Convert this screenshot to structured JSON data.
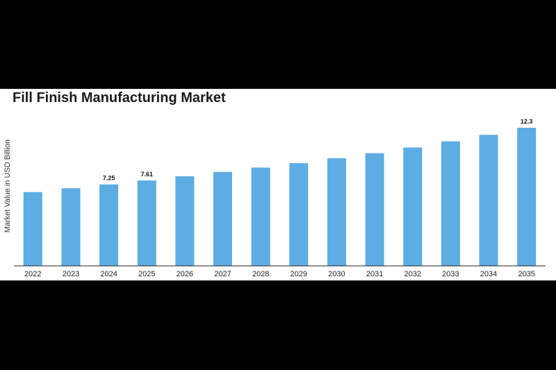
{
  "chart_data": {
    "type": "bar",
    "title": "Fill Finish Manufacturing Market",
    "xlabel": "",
    "ylabel": "Market Value in USD Billion",
    "categories": [
      "2022",
      "2023",
      "2024",
      "2025",
      "2026",
      "2027",
      "2028",
      "2029",
      "2030",
      "2031",
      "2032",
      "2033",
      "2034",
      "2035"
    ],
    "values": [
      6.57,
      6.91,
      7.25,
      7.61,
      7.98,
      8.36,
      8.75,
      9.15,
      9.58,
      10.04,
      10.54,
      11.09,
      11.67,
      12.3
    ],
    "data_labels": {
      "2024": "7.25",
      "2025": "7.61",
      "2035": "12.3"
    },
    "ylim": [
      0,
      12.3
    ],
    "grid": false,
    "bar_color": "#5dade2",
    "axis_color": "#222222"
  }
}
